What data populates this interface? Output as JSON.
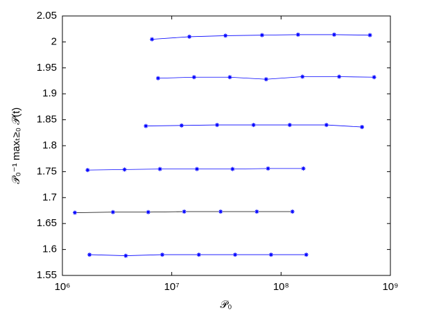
{
  "chart_data": {
    "type": "line",
    "xlabel": "𝒫₀",
    "ylabel": "𝒫₀⁻¹ maxₜ≥₀ 𝒫(t)",
    "xscale": "log",
    "xlim": [
      1000000,
      1000000000
    ],
    "xticks": [
      {
        "value": 1000000,
        "label": "10⁶"
      },
      {
        "value": 10000000,
        "label": "10⁷"
      },
      {
        "value": 100000000,
        "label": "10⁸"
      },
      {
        "value": 1000000000,
        "label": "10⁹"
      }
    ],
    "ylim": [
      1.55,
      2.05
    ],
    "yticks": [
      1.55,
      1.6,
      1.65,
      1.7,
      1.75,
      1.8,
      1.85,
      1.9,
      1.95,
      2,
      2.05
    ],
    "grid": false,
    "series": [
      {
        "color": "#0000ff",
        "marker_color": "#0000ff",
        "x": [
          6600000,
          14500000,
          31000000,
          67000000,
          143000000,
          306000000,
          650000000
        ],
        "values": [
          2.005,
          2.01,
          2.012,
          2.013,
          2.014,
          2.014,
          2.013
        ]
      },
      {
        "color": "#0000ff",
        "marker_color": "#0000ff",
        "x": [
          7500000,
          16000000,
          34000000,
          73000000,
          157000000,
          340000000,
          710000000
        ],
        "values": [
          1.93,
          1.932,
          1.932,
          1.928,
          1.933,
          1.933,
          1.932
        ]
      },
      {
        "color": "#0000ff",
        "marker_color": "#0000ff",
        "x": [
          5800000,
          12300000,
          26000000,
          56000000,
          120000000,
          260000000,
          550000000
        ],
        "values": [
          1.838,
          1.839,
          1.84,
          1.84,
          1.84,
          1.84,
          1.836
        ]
      },
      {
        "color": "#0000ff",
        "marker_color": "#0000ff",
        "x": [
          1700000,
          3700000,
          7800000,
          17000000,
          36000000,
          76000000,
          160000000
        ],
        "values": [
          1.753,
          1.754,
          1.755,
          1.755,
          1.755,
          1.756,
          1.756
        ]
      },
      {
        "color": "#000000",
        "marker_color": "#0000ff",
        "x": [
          1300000,
          2900000,
          6100000,
          13000000,
          28000000,
          60000000,
          127000000
        ],
        "values": [
          1.671,
          1.672,
          1.672,
          1.673,
          1.673,
          1.673,
          1.673
        ]
      },
      {
        "color": "#0000ff",
        "marker_color": "#0000ff",
        "x": [
          1770000,
          3800000,
          8200000,
          17700000,
          38000000,
          81000000,
          170000000
        ],
        "values": [
          1.59,
          1.588,
          1.59,
          1.59,
          1.59,
          1.59,
          1.59
        ]
      }
    ]
  }
}
